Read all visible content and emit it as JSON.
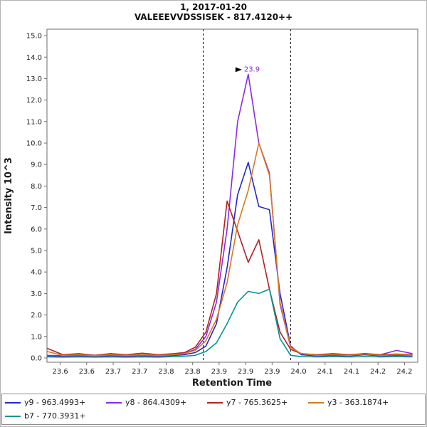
{
  "window": {
    "background": "#ffffff",
    "border_color": "#b4b4b4"
  },
  "chart_data": {
    "type": "line",
    "title": "1, 2017-01-20",
    "subtitle": "VALEEEVVDSSISEK - 817.4120++",
    "xlabel": "Retention Time",
    "ylabel": "Intensity 10^3",
    "xlim": [
      23.55,
      24.25
    ],
    "ylim": [
      -0.2,
      15.3
    ],
    "grid": false,
    "legend_position": "bottom",
    "x_tick_labels": [
      "23.6",
      "23.6",
      "23.7",
      "23.7",
      "23.8",
      "23.8",
      "23.9",
      "23.9",
      "23.9",
      "24.0",
      "24.1",
      "24.1",
      "24.2",
      "24.2"
    ],
    "y_ticks": [
      {
        "v": 0,
        "label": "0.0"
      },
      {
        "v": 1,
        "label": "1.0"
      },
      {
        "v": 2,
        "label": "2.0"
      },
      {
        "v": 3,
        "label": "3.0"
      },
      {
        "v": 4,
        "label": "4.0"
      },
      {
        "v": 5,
        "label": "5.0"
      },
      {
        "v": 6,
        "label": "6.0"
      },
      {
        "v": 7,
        "label": "7.0"
      },
      {
        "v": 8,
        "label": "8.0"
      },
      {
        "v": 9,
        "label": "9.0"
      },
      {
        "v": 10,
        "label": "10.0"
      },
      {
        "v": 11,
        "label": "11.0"
      },
      {
        "v": 12,
        "label": "12.0"
      },
      {
        "v": 13,
        "label": "13.0"
      },
      {
        "v": 14,
        "label": "14.0"
      },
      {
        "v": 15,
        "label": "15.0"
      }
    ],
    "peak_boundaries": [
      23.845,
      24.01
    ],
    "peak_annotation": {
      "label": "23.9",
      "x": 23.93,
      "y": 13.2,
      "marker": "black-right-arrow"
    },
    "x": [
      23.55,
      23.58,
      23.61,
      23.64,
      23.67,
      23.7,
      23.73,
      23.76,
      23.79,
      23.81,
      23.83,
      23.85,
      23.87,
      23.89,
      23.91,
      23.93,
      23.95,
      23.97,
      23.99,
      24.01,
      24.03,
      24.06,
      24.09,
      24.12,
      24.15,
      24.18,
      24.21,
      24.24
    ],
    "series": [
      {
        "name": "y9 - 963.4993+",
        "color": "#2626cc",
        "values": [
          0.1,
          0.08,
          0.1,
          0.07,
          0.1,
          0.08,
          0.1,
          0.08,
          0.12,
          0.15,
          0.25,
          0.55,
          1.6,
          4.2,
          7.6,
          9.1,
          7.05,
          6.9,
          3.0,
          0.55,
          0.15,
          0.1,
          0.12,
          0.1,
          0.15,
          0.1,
          0.12,
          0.1
        ]
      },
      {
        "name": "y8 - 864.4309+",
        "color": "#8a2be2",
        "values": [
          0.12,
          0.1,
          0.12,
          0.1,
          0.12,
          0.1,
          0.12,
          0.1,
          0.15,
          0.2,
          0.4,
          1.0,
          2.6,
          6.0,
          11.0,
          13.2,
          10.0,
          8.6,
          2.5,
          0.5,
          0.2,
          0.12,
          0.15,
          0.12,
          0.2,
          0.15,
          0.35,
          0.2
        ]
      },
      {
        "name": "y7 - 765.3625+",
        "color": "#b22222",
        "values": [
          0.45,
          0.15,
          0.2,
          0.12,
          0.2,
          0.15,
          0.22,
          0.15,
          0.2,
          0.25,
          0.5,
          1.2,
          3.0,
          7.3,
          5.9,
          4.45,
          5.5,
          3.2,
          1.2,
          0.4,
          0.2,
          0.15,
          0.2,
          0.15,
          0.2,
          0.15,
          0.18,
          0.15
        ]
      },
      {
        "name": "y3 - 363.1874+",
        "color": "#d97820",
        "values": [
          0.3,
          0.12,
          0.15,
          0.1,
          0.15,
          0.12,
          0.15,
          0.12,
          0.15,
          0.2,
          0.35,
          0.8,
          1.8,
          3.5,
          6.2,
          7.8,
          10.0,
          8.5,
          2.6,
          0.5,
          0.2,
          0.12,
          0.15,
          0.12,
          0.18,
          0.12,
          0.15,
          0.12
        ]
      },
      {
        "name": "b7 - 770.3931+",
        "color": "#009494",
        "values": [
          0.05,
          0.04,
          0.05,
          0.04,
          0.05,
          0.04,
          0.05,
          0.04,
          0.06,
          0.08,
          0.12,
          0.3,
          0.7,
          1.6,
          2.6,
          3.1,
          3.0,
          3.2,
          0.9,
          0.12,
          0.06,
          0.05,
          0.06,
          0.05,
          0.06,
          0.05,
          0.06,
          0.05
        ]
      }
    ]
  }
}
